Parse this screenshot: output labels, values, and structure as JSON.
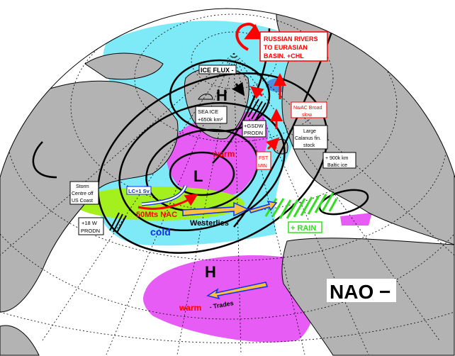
{
  "title": "NAO −",
  "colors": {
    "land": "#b3b3b3",
    "ocean": "#ffffff",
    "cold_anomaly": "#7ee9f7",
    "warm_anomaly": "#e65cf5",
    "storm_zone": "#a4f01e",
    "rain": "#33dd22",
    "arrow_fill": "#f8bf40",
    "arrow_outline": "#1030f0",
    "red_text": "#ff0000"
  },
  "pressure_centres": {
    "high_north": "H",
    "low": "L",
    "high_south": "H"
  },
  "labels": {
    "russian_rivers": [
      "RUSSIAN RIVERS",
      "TO EURASIAN",
      "BASIN. +CHL"
    ],
    "ice_flux": "ICE FLUX -",
    "sea_ice": [
      "SEA ICE",
      "+650k km²"
    ],
    "gsdw": [
      "+GSDW",
      "PRODN"
    ],
    "nwac": [
      "NwAC Broad",
      "slow"
    ],
    "calanus": [
      "Large",
      "Calanus fin.",
      "stock"
    ],
    "fst_min": [
      "FST",
      "MIN"
    ],
    "baltic": [
      "+ 900k km",
      "Baltic ice"
    ],
    "storm_centre": [
      "Storm",
      "Centre off",
      "US Coast"
    ],
    "lc": "LC+1 Sv",
    "nac": "50Mts  NAC",
    "w18": [
      "+18 W",
      "PRODN"
    ],
    "cold": "cold",
    "warm_north": "warm",
    "westerlies": "Westerlies",
    "rain": "+ RAIN",
    "warm_south": "warm",
    "trades": "- Trades"
  }
}
